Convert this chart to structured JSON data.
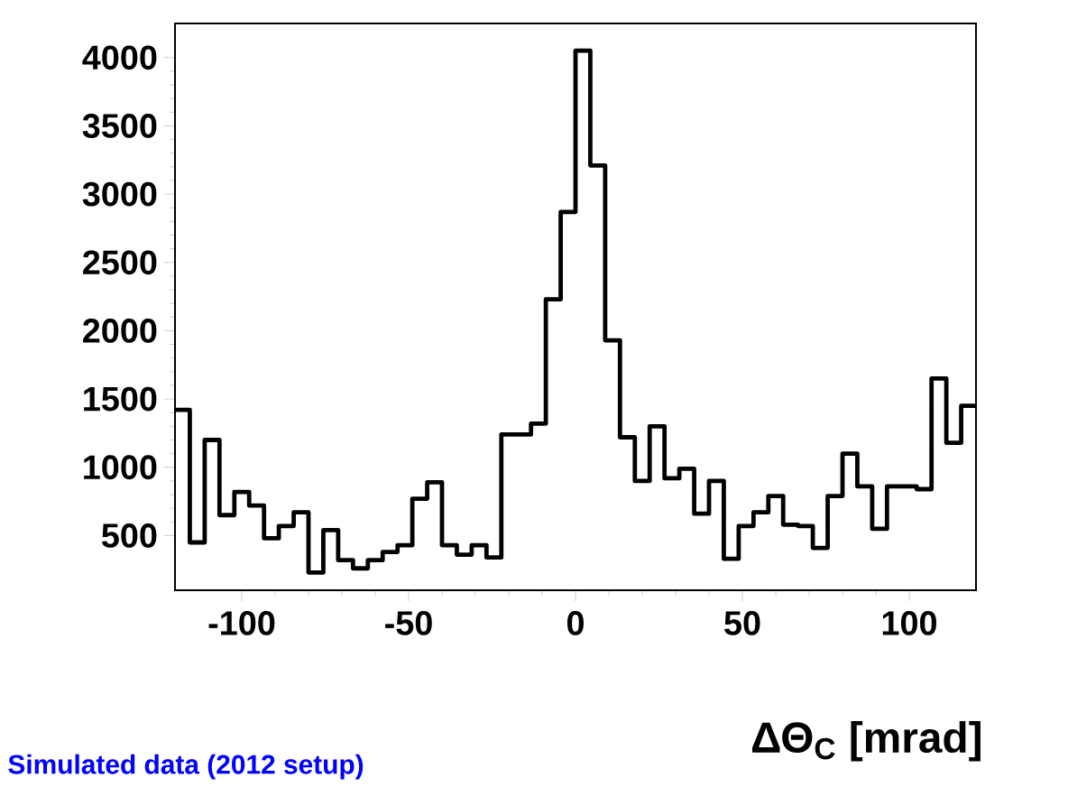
{
  "chart_data": {
    "type": "histogram",
    "bins": [
      -120,
      -115.56,
      -111.11,
      -106.67,
      -102.22,
      -97.78,
      -93.33,
      -88.89,
      -84.44,
      -80,
      -75.56,
      -71.11,
      -66.67,
      -62.22,
      -57.78,
      -53.33,
      -48.89,
      -44.44,
      -40,
      -35.56,
      -31.11,
      -26.67,
      -22.22,
      -17.78,
      -13.33,
      -8.89,
      -4.44,
      0,
      4.44,
      8.89,
      13.33,
      17.78,
      22.22,
      26.67,
      31.11,
      35.56,
      40,
      44.44,
      48.89,
      53.33,
      57.78,
      62.22,
      66.67,
      71.11,
      75.56,
      80,
      84.44,
      88.89,
      93.33,
      97.78,
      102.22,
      106.67,
      111.11,
      115.56,
      120
    ],
    "values": [
      1420,
      450,
      1200,
      650,
      820,
      720,
      480,
      570,
      670,
      230,
      540,
      320,
      260,
      320,
      380,
      430,
      770,
      890,
      430,
      360,
      430,
      340,
      1240,
      1240,
      1320,
      2230,
      2870,
      4050,
      3210,
      1930,
      1220,
      900,
      1300,
      920,
      990,
      660,
      900,
      330,
      570,
      670,
      790,
      580,
      570,
      410,
      790,
      1100,
      860,
      550,
      860,
      860,
      840,
      1650,
      1180,
      1450
    ],
    "color": "#000000",
    "xlabel": "ΔΘ$_{C}$ [mrad]",
    "xlim": [
      -120,
      120
    ],
    "xticks": [
      -100,
      -50,
      0,
      50,
      100
    ],
    "ylim": [
      100,
      4250
    ],
    "yticks": [
      500,
      1000,
      1500,
      2000,
      2500,
      3000,
      3500,
      4000
    ],
    "annotations": [
      "Simulated data (2012 setup)"
    ]
  }
}
